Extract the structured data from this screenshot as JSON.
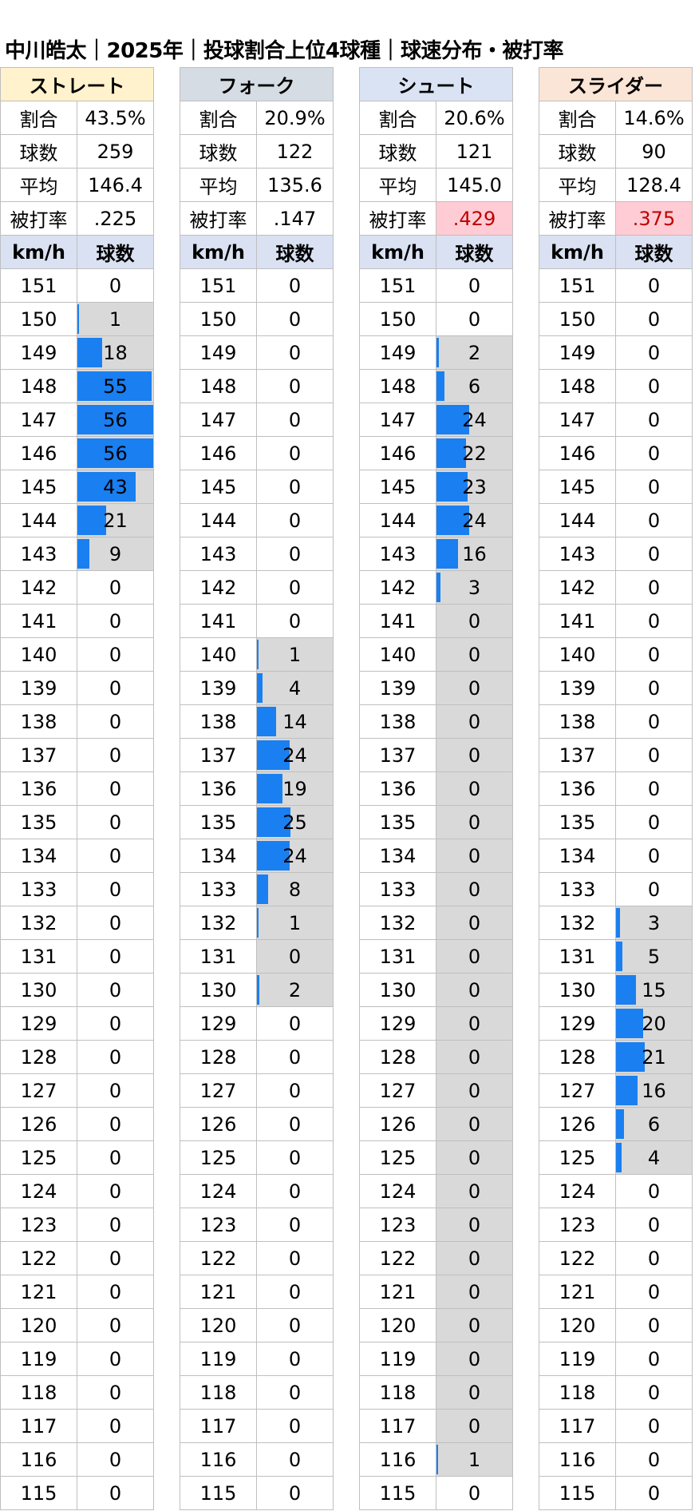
{
  "title": "中川皓太｜2025年｜投球割合上位4球種｜球速分布・被打率",
  "labels": {
    "ratio": "割合",
    "count": "球数",
    "avg": "平均",
    "bavg": "被打率",
    "kmh": "km/h",
    "pitches": "球数"
  },
  "colors": {
    "bar": "#1a7ff0",
    "highlight_bg": "#ffccd5",
    "highlight_text": "#c00000",
    "range_bg": "#d9d9d9",
    "col_header_bg": "#d9e1f2"
  },
  "chart_data": {
    "type": "table",
    "speeds": [
      151,
      150,
      149,
      148,
      147,
      146,
      145,
      144,
      143,
      142,
      141,
      140,
      139,
      138,
      137,
      136,
      135,
      134,
      133,
      132,
      131,
      130,
      129,
      128,
      127,
      126,
      125,
      124,
      123,
      122,
      121,
      120,
      119,
      118,
      117,
      116,
      115
    ],
    "series": [
      {
        "name": "ストレート",
        "header_color": "#fff2cc",
        "ratio": "43.5%",
        "count": "259",
        "avg": "146.4",
        "bavg": ".225",
        "bavg_highlight": false,
        "values": [
          0,
          1,
          18,
          55,
          56,
          56,
          43,
          21,
          9,
          0,
          0,
          0,
          0,
          0,
          0,
          0,
          0,
          0,
          0,
          0,
          0,
          0,
          0,
          0,
          0,
          0,
          0,
          0,
          0,
          0,
          0,
          0,
          0,
          0,
          0,
          0,
          0
        ]
      },
      {
        "name": "フォーク",
        "header_color": "#d6dce4",
        "ratio": "20.9%",
        "count": "122",
        "avg": "135.6",
        "bavg": ".147",
        "bavg_highlight": false,
        "values": [
          0,
          0,
          0,
          0,
          0,
          0,
          0,
          0,
          0,
          0,
          0,
          1,
          4,
          14,
          24,
          19,
          25,
          24,
          8,
          1,
          0,
          2,
          0,
          0,
          0,
          0,
          0,
          0,
          0,
          0,
          0,
          0,
          0,
          0,
          0,
          0,
          0
        ]
      },
      {
        "name": "シュート",
        "header_color": "#dae3f3",
        "ratio": "20.6%",
        "count": "121",
        "avg": "145.0",
        "bavg": ".429",
        "bavg_highlight": true,
        "values": [
          0,
          0,
          2,
          6,
          24,
          22,
          23,
          24,
          16,
          3,
          0,
          0,
          0,
          0,
          0,
          0,
          0,
          0,
          0,
          0,
          0,
          0,
          0,
          0,
          0,
          0,
          0,
          0,
          0,
          0,
          0,
          0,
          0,
          0,
          0,
          1,
          0
        ]
      },
      {
        "name": "スライダー",
        "header_color": "#fbe5d6",
        "ratio": "14.6%",
        "count": "90",
        "avg": "128.4",
        "bavg": ".375",
        "bavg_highlight": true,
        "values": [
          0,
          0,
          0,
          0,
          0,
          0,
          0,
          0,
          0,
          0,
          0,
          0,
          0,
          0,
          0,
          0,
          0,
          0,
          0,
          3,
          5,
          15,
          20,
          21,
          16,
          6,
          4,
          0,
          0,
          0,
          0,
          0,
          0,
          0,
          0,
          0,
          0
        ]
      }
    ],
    "bar_max": 56
  }
}
